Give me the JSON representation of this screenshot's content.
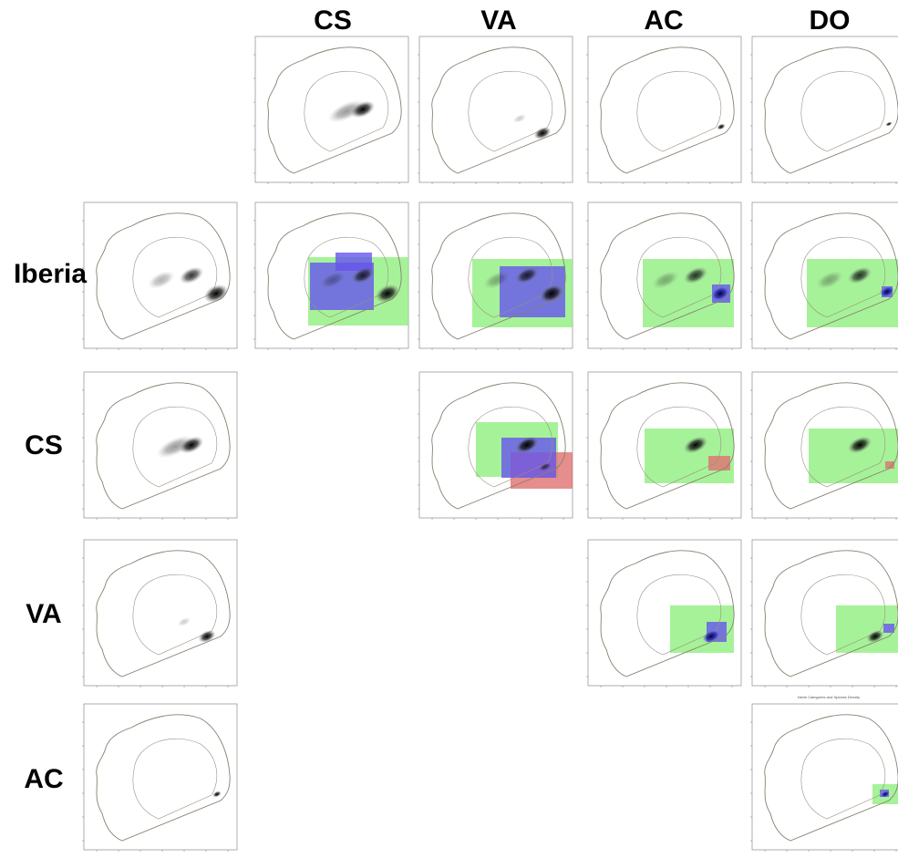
{
  "column_headers": [
    "CS",
    "VA",
    "AC",
    "DO"
  ],
  "row_labels": [
    "Iberia",
    "CS",
    "VA",
    "AC"
  ],
  "panel_title": "Niche Categories and Species Density"
}
